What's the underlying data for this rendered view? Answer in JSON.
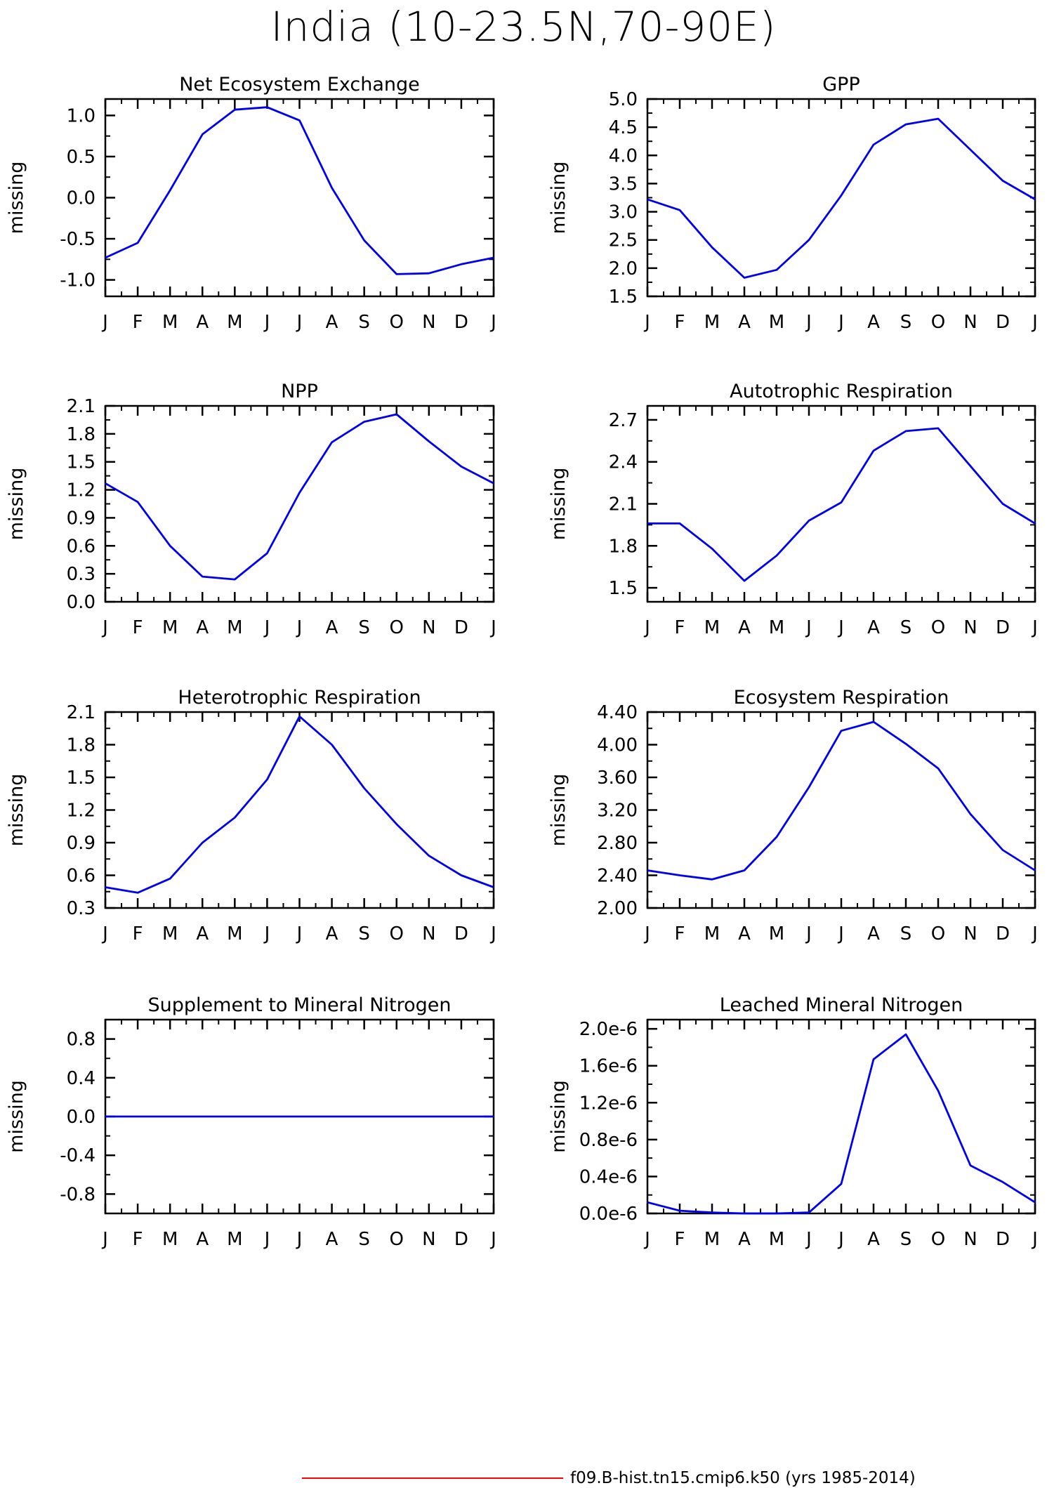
{
  "title": "India (10-23.5N,70-90E)",
  "legend": {
    "label": "f09.B-hist.tn15.cmip6.k50 (yrs 1985-2014)",
    "color": "#ff0000"
  },
  "line_color": "#0000ee",
  "chart_data": [
    {
      "type": "line",
      "title": "Net Ecosystem Exchange",
      "ylabel": "missing",
      "categories": [
        "J",
        "F",
        "M",
        "A",
        "M",
        "J",
        "J",
        "A",
        "S",
        "O",
        "N",
        "D",
        "J"
      ],
      "yticks": [
        "1.0",
        "0.5",
        "0.0",
        "-0.5",
        "-1.0"
      ],
      "ytick_values": [
        1.0,
        0.5,
        0.0,
        -0.5,
        -1.0
      ],
      "ylim": [
        -1.2,
        1.2
      ],
      "values": [
        -0.73,
        -0.55,
        0.09,
        0.77,
        1.07,
        1.1,
        0.94,
        0.12,
        -0.52,
        -0.93,
        -0.92,
        -0.81,
        -0.73
      ]
    },
    {
      "type": "line",
      "title": "GPP",
      "ylabel": "missing",
      "categories": [
        "J",
        "F",
        "M",
        "A",
        "M",
        "J",
        "J",
        "A",
        "S",
        "O",
        "N",
        "D",
        "J"
      ],
      "yticks": [
        "5.0",
        "4.5",
        "4.0",
        "3.5",
        "3.0",
        "2.5",
        "2.0",
        "1.5"
      ],
      "ytick_values": [
        5.0,
        4.5,
        4.0,
        3.5,
        3.0,
        2.5,
        2.0,
        1.5
      ],
      "ylim": [
        1.5,
        5.0
      ],
      "values": [
        3.22,
        3.03,
        2.37,
        1.83,
        1.97,
        2.5,
        3.29,
        4.19,
        4.55,
        4.65,
        4.1,
        3.55,
        3.22
      ]
    },
    {
      "type": "line",
      "title": "NPP",
      "ylabel": "missing",
      "categories": [
        "J",
        "F",
        "M",
        "A",
        "M",
        "J",
        "J",
        "A",
        "S",
        "O",
        "N",
        "D",
        "J"
      ],
      "yticks": [
        "2.1",
        "1.8",
        "1.5",
        "1.2",
        "0.9",
        "0.6",
        "0.3",
        "0.0"
      ],
      "ytick_values": [
        2.1,
        1.8,
        1.5,
        1.2,
        0.9,
        0.6,
        0.3,
        0.0
      ],
      "ylim": [
        0.0,
        2.1
      ],
      "values": [
        1.27,
        1.07,
        0.6,
        0.27,
        0.24,
        0.52,
        1.17,
        1.71,
        1.93,
        2.01,
        1.72,
        1.45,
        1.27
      ]
    },
    {
      "type": "line",
      "title": "Autotrophic Respiration",
      "ylabel": "missing",
      "categories": [
        "J",
        "F",
        "M",
        "A",
        "M",
        "J",
        "J",
        "A",
        "S",
        "O",
        "N",
        "D",
        "J"
      ],
      "yticks": [
        "2.7",
        "2.4",
        "2.1",
        "1.8",
        "1.5"
      ],
      "ytick_values": [
        2.7,
        2.4,
        2.1,
        1.8,
        1.5
      ],
      "ylim": [
        1.4,
        2.8
      ],
      "values": [
        1.96,
        1.96,
        1.78,
        1.55,
        1.73,
        1.98,
        2.11,
        2.48,
        2.62,
        2.64,
        2.37,
        2.1,
        1.96
      ]
    },
    {
      "type": "line",
      "title": "Heterotrophic Respiration",
      "ylabel": "missing",
      "categories": [
        "J",
        "F",
        "M",
        "A",
        "M",
        "J",
        "J",
        "A",
        "S",
        "O",
        "N",
        "D",
        "J"
      ],
      "yticks": [
        "2.1",
        "1.8",
        "1.5",
        "1.2",
        "0.9",
        "0.6",
        "0.3"
      ],
      "ytick_values": [
        2.1,
        1.8,
        1.5,
        1.2,
        0.9,
        0.6,
        0.3
      ],
      "ylim": [
        0.3,
        2.1
      ],
      "values": [
        0.49,
        0.44,
        0.57,
        0.9,
        1.13,
        1.48,
        2.06,
        1.8,
        1.4,
        1.07,
        0.78,
        0.6,
        0.49
      ]
    },
    {
      "type": "line",
      "title": "Ecosystem Respiration",
      "ylabel": "missing",
      "categories": [
        "J",
        "F",
        "M",
        "A",
        "M",
        "J",
        "J",
        "A",
        "S",
        "O",
        "N",
        "D",
        "J"
      ],
      "yticks": [
        "4.40",
        "4.00",
        "3.60",
        "3.20",
        "2.80",
        "2.40",
        "2.00"
      ],
      "ytick_values": [
        4.4,
        4.0,
        3.6,
        3.2,
        2.8,
        2.4,
        2.0
      ],
      "ylim": [
        2.0,
        4.4
      ],
      "values": [
        2.46,
        2.4,
        2.35,
        2.46,
        2.87,
        3.48,
        4.17,
        4.28,
        4.01,
        3.71,
        3.15,
        2.71,
        2.46
      ]
    },
    {
      "type": "line",
      "title": "Supplement to Mineral Nitrogen",
      "ylabel": "missing",
      "categories": [
        "J",
        "F",
        "M",
        "A",
        "M",
        "J",
        "J",
        "A",
        "S",
        "O",
        "N",
        "D",
        "J"
      ],
      "yticks": [
        "0.8",
        "0.4",
        "0.0",
        "-0.4",
        "-0.8"
      ],
      "ytick_values": [
        0.8,
        0.4,
        0.0,
        -0.4,
        -0.8
      ],
      "ylim": [
        -1.0,
        1.0
      ],
      "values": [
        0,
        0,
        0,
        0,
        0,
        0,
        0,
        0,
        0,
        0,
        0,
        0,
        0
      ]
    },
    {
      "type": "line",
      "title": "Leached Mineral Nitrogen",
      "ylabel": "missing",
      "categories": [
        "J",
        "F",
        "M",
        "A",
        "M",
        "J",
        "J",
        "A",
        "S",
        "O",
        "N",
        "D",
        "J"
      ],
      "yticks": [
        "2.0e-6",
        "1.6e-6",
        "1.2e-6",
        "0.8e-6",
        "0.4e-6",
        "0.0e-6"
      ],
      "ytick_values": [
        2e-06,
        1.6e-06,
        1.2e-06,
        8e-07,
        4e-07,
        0.0
      ],
      "ylim": [
        0.0,
        2.1e-06
      ],
      "values": [
        1.2e-07,
        3e-08,
        1e-08,
        0,
        0,
        1e-08,
        3.2e-07,
        1.67e-06,
        1.94e-06,
        1.33e-06,
        5.2e-07,
        3.4e-07,
        1.2e-07
      ]
    }
  ]
}
